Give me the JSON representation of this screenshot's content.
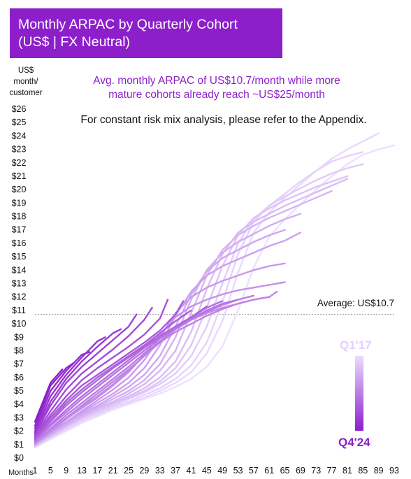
{
  "header": {
    "title_line1": "Monthly ARPAC by Quarterly Cohort",
    "title_line2": "(US$ | FX Neutral)"
  },
  "y_unit": {
    "line1": "US$",
    "line2": "month/",
    "line3": "customer"
  },
  "subtitle": {
    "line1": "Avg. monthly ARPAC of US$10.7/month while more",
    "line2": "mature cohorts already reach ~US$25/month"
  },
  "note": "For constant risk mix analysis, please refer to the Appendix.",
  "average_label": "Average: US$10.7",
  "legend": {
    "oldest": "Q1'17",
    "newest": "Q4'24"
  },
  "colors": {
    "newest": "#8d1fcb",
    "oldest": "#ece0ff",
    "avg_line": "#9a9a9a"
  },
  "chart_data": {
    "type": "line",
    "xlabel": "Months",
    "ylabel": "US$ month/ customer",
    "xlim": [
      1,
      93
    ],
    "ylim": [
      0,
      26
    ],
    "x_ticks": [
      1,
      5,
      9,
      13,
      17,
      21,
      25,
      29,
      33,
      37,
      41,
      45,
      49,
      53,
      57,
      61,
      65,
      69,
      73,
      77,
      81,
      85,
      89,
      93
    ],
    "y_ticks": [
      "$0",
      "$1",
      "$2",
      "$3",
      "$4",
      "$5",
      "$6",
      "$7",
      "$8",
      "$9",
      "$10",
      "$11",
      "$12",
      "$13",
      "$14",
      "$15",
      "$16",
      "$17",
      "$18",
      "$19",
      "$20",
      "$21",
      "$22",
      "$23",
      "$24",
      "$25",
      "$26"
    ],
    "average": 10.7,
    "grid": false,
    "legend_position": "right",
    "series": [
      {
        "x": [
          1,
          5,
          9,
          13,
          17,
          21,
          25,
          29,
          33,
          37,
          41,
          45,
          49,
          53,
          57,
          61,
          65,
          69,
          73,
          77,
          81,
          85,
          89,
          93
        ],
        "y": [
          0.8,
          1.4,
          2.0,
          2.6,
          3.1,
          3.6,
          4.0,
          4.4,
          4.8,
          5.3,
          5.9,
          6.8,
          8.3,
          11.0,
          14.2,
          16.5,
          17.8,
          18.9,
          20.0,
          21.0,
          21.9,
          22.6,
          23.0,
          23.3
        ]
      },
      {
        "x": [
          1,
          5,
          9,
          13,
          17,
          21,
          25,
          29,
          33,
          37,
          41,
          45,
          49,
          53,
          57,
          61,
          65,
          69,
          73,
          77,
          81,
          85,
          89
        ],
        "y": [
          0.8,
          1.5,
          2.1,
          2.7,
          3.2,
          3.7,
          4.1,
          4.5,
          5.0,
          5.6,
          6.4,
          7.8,
          10.2,
          13.8,
          16.8,
          18.3,
          19.4,
          20.4,
          21.4,
          22.3,
          23.0,
          23.6,
          24.2
        ]
      },
      {
        "x": [
          1,
          5,
          9,
          13,
          17,
          21,
          25,
          29,
          33,
          37,
          41,
          45,
          49,
          53,
          57,
          61,
          65,
          69,
          73,
          77,
          81,
          85
        ],
        "y": [
          0.8,
          1.5,
          2.2,
          2.8,
          3.3,
          3.8,
          4.2,
          4.7,
          5.2,
          5.9,
          6.9,
          8.6,
          11.6,
          15.2,
          17.6,
          18.8,
          19.7,
          20.6,
          21.4,
          22.1,
          22.5,
          22.8
        ]
      },
      {
        "x": [
          1,
          5,
          9,
          13,
          17,
          21,
          25,
          29,
          33,
          37,
          41,
          45,
          49,
          53,
          57,
          61,
          65,
          69,
          73,
          77,
          81,
          85
        ],
        "y": [
          0.9,
          1.6,
          2.3,
          2.9,
          3.4,
          3.9,
          4.4,
          4.9,
          5.5,
          6.3,
          7.6,
          9.8,
          13.0,
          16.0,
          17.8,
          18.8,
          19.5,
          20.1,
          20.7,
          21.2,
          21.6,
          21.9
        ]
      },
      {
        "x": [
          1,
          5,
          9,
          13,
          17,
          21,
          25,
          29,
          33,
          37,
          41,
          45,
          49,
          53,
          57,
          61,
          65,
          69,
          73,
          77,
          81
        ],
        "y": [
          0.9,
          1.6,
          2.3,
          3.0,
          3.5,
          4.0,
          4.5,
          5.0,
          5.7,
          6.7,
          8.4,
          11.2,
          14.3,
          16.6,
          17.9,
          18.6,
          19.2,
          19.7,
          20.2,
          20.6,
          21.0
        ]
      },
      {
        "x": [
          1,
          5,
          9,
          13,
          17,
          21,
          25,
          29,
          33,
          37,
          41,
          45,
          49,
          53,
          57,
          61,
          65,
          69,
          73,
          77,
          81
        ],
        "y": [
          0.9,
          1.7,
          2.4,
          3.0,
          3.6,
          4.1,
          4.6,
          5.2,
          6.0,
          7.2,
          9.4,
          12.6,
          15.2,
          16.8,
          17.6,
          18.2,
          18.8,
          19.3,
          19.8,
          20.3,
          20.8
        ]
      },
      {
        "x": [
          1,
          5,
          9,
          13,
          17,
          21,
          25,
          29,
          33,
          37,
          41,
          45,
          49,
          53,
          57,
          61,
          65,
          69,
          73,
          77
        ],
        "y": [
          1.0,
          1.7,
          2.4,
          3.1,
          3.7,
          4.2,
          4.8,
          5.5,
          6.5,
          8.0,
          10.8,
          13.6,
          15.5,
          16.6,
          17.3,
          17.9,
          18.4,
          18.9,
          19.4,
          19.9
        ]
      },
      {
        "x": [
          1,
          5,
          9,
          13,
          17,
          21,
          25,
          29,
          33,
          37,
          41,
          45,
          49,
          53,
          57,
          61,
          65,
          69
        ],
        "y": [
          1.0,
          1.8,
          2.5,
          3.2,
          3.8,
          4.4,
          5.0,
          5.8,
          7.0,
          9.0,
          11.8,
          14.0,
          15.3,
          16.1,
          16.7,
          17.3,
          17.8,
          18.2
        ]
      },
      {
        "x": [
          1,
          5,
          9,
          13,
          17,
          21,
          25,
          29,
          33,
          37,
          41,
          45,
          49,
          53,
          57,
          61,
          65
        ],
        "y": [
          1.0,
          1.8,
          2.6,
          3.3,
          3.9,
          4.6,
          5.3,
          6.2,
          7.6,
          9.8,
          12.2,
          13.9,
          14.9,
          15.5,
          16.1,
          16.6,
          17.0
        ]
      },
      {
        "x": [
          1,
          5,
          9,
          13,
          17,
          21,
          25,
          29,
          33,
          37,
          41,
          45,
          49,
          53,
          57,
          61,
          65,
          69
        ],
        "y": [
          1.0,
          1.9,
          2.7,
          3.4,
          4.1,
          4.8,
          5.6,
          6.7,
          8.4,
          10.6,
          12.4,
          13.6,
          14.3,
          14.8,
          15.3,
          15.8,
          16.2,
          16.8
        ]
      },
      {
        "x": [
          1,
          5,
          9,
          13,
          17,
          21,
          25,
          29,
          33,
          37,
          41,
          45,
          49,
          53,
          57,
          61,
          65
        ],
        "y": [
          1.1,
          1.9,
          2.7,
          3.5,
          4.3,
          5.1,
          6.0,
          7.3,
          9.0,
          10.8,
          12.0,
          12.7,
          13.2,
          13.6,
          14.0,
          14.3,
          14.5
        ]
      },
      {
        "x": [
          1,
          5,
          9,
          13,
          17,
          21,
          25,
          29,
          33,
          37,
          41,
          45,
          49,
          53,
          57,
          61,
          65
        ],
        "y": [
          1.1,
          2.0,
          2.9,
          3.7,
          4.5,
          5.4,
          6.4,
          7.7,
          9.2,
          10.5,
          11.3,
          11.8,
          12.2,
          12.5,
          12.7,
          12.9,
          13.1
        ]
      },
      {
        "x": [
          1,
          5,
          9,
          13,
          17,
          21,
          25,
          29,
          33,
          37,
          41,
          45,
          49,
          53,
          57,
          61,
          63
        ],
        "y": [
          1.1,
          2.0,
          2.9,
          3.8,
          4.6,
          5.5,
          6.5,
          7.6,
          8.7,
          9.6,
          10.3,
          10.8,
          11.2,
          11.5,
          11.8,
          12.0,
          12.4
        ]
      },
      {
        "x": [
          1,
          5,
          9,
          13,
          17,
          21,
          25,
          29,
          33,
          37,
          41,
          45,
          49,
          53,
          57,
          61
        ],
        "y": [
          1.2,
          2.1,
          3.0,
          3.9,
          4.8,
          5.7,
          6.6,
          7.6,
          8.6,
          9.4,
          10.0,
          10.6,
          11.1,
          11.5,
          11.8,
          12.0
        ]
      },
      {
        "x": [
          1,
          5,
          9,
          13,
          17,
          21,
          25,
          29,
          33,
          37,
          41,
          45,
          49,
          53,
          57
        ],
        "y": [
          1.2,
          2.2,
          3.2,
          4.1,
          5.0,
          5.9,
          6.8,
          7.8,
          8.7,
          9.6,
          10.3,
          10.9,
          11.4,
          11.8,
          12.1
        ]
      },
      {
        "x": [
          1,
          5,
          9,
          13,
          17,
          21,
          25,
          29,
          33,
          37,
          41,
          45,
          49,
          53
        ],
        "y": [
          1.3,
          2.4,
          3.4,
          4.4,
          5.3,
          6.2,
          7.1,
          8.0,
          8.9,
          9.7,
          10.4,
          11.0,
          11.5,
          11.8
        ]
      },
      {
        "x": [
          1,
          5,
          9,
          13,
          17,
          21,
          25,
          29,
          33,
          37,
          41,
          45,
          49
        ],
        "y": [
          1.3,
          2.5,
          3.6,
          4.6,
          5.5,
          6.4,
          7.3,
          8.2,
          9.0,
          9.8,
          10.5,
          11.2,
          11.7
        ]
      },
      {
        "x": [
          1,
          5,
          9,
          13,
          17,
          21,
          25,
          29,
          33,
          37,
          41,
          45
        ],
        "y": [
          1.4,
          2.7,
          3.9,
          4.9,
          5.8,
          6.7,
          7.5,
          8.3,
          9.1,
          9.8,
          10.5,
          11.3
        ]
      },
      {
        "x": [
          1,
          5,
          9,
          13,
          17,
          21,
          25,
          29,
          33,
          37,
          41
        ],
        "y": [
          1.4,
          2.8,
          4.1,
          5.1,
          6.0,
          6.8,
          7.6,
          8.4,
          9.3,
          10.2,
          11.0
        ]
      },
      {
        "x": [
          1,
          5,
          9,
          13,
          17,
          21,
          25,
          29,
          33,
          37,
          39
        ],
        "y": [
          1.5,
          3.0,
          4.3,
          5.4,
          6.2,
          7.0,
          7.8,
          8.6,
          9.5,
          10.7,
          11.7
        ]
      },
      {
        "x": [
          1,
          5,
          9,
          13,
          17,
          21,
          25,
          29,
          33,
          35
        ],
        "y": [
          1.6,
          3.2,
          4.6,
          5.8,
          6.7,
          7.5,
          8.3,
          9.2,
          10.4,
          11.8
        ]
      },
      {
        "x": [
          1,
          5,
          9,
          13,
          17,
          21,
          25,
          29,
          31
        ],
        "y": [
          1.7,
          3.5,
          5.1,
          6.3,
          7.2,
          8.1,
          9.1,
          10.3,
          11.2
        ]
      },
      {
        "x": [
          1,
          5,
          9,
          13,
          17,
          21,
          25,
          27
        ],
        "y": [
          1.8,
          3.9,
          5.6,
          6.8,
          7.8,
          8.8,
          9.8,
          10.7
        ]
      },
      {
        "x": [
          1,
          5,
          9,
          13,
          17,
          21,
          23
        ],
        "y": [
          1.9,
          4.2,
          5.9,
          7.2,
          8.3,
          9.3,
          9.6
        ]
      },
      {
        "x": [
          1,
          5,
          9,
          13,
          17,
          19
        ],
        "y": [
          2.0,
          4.6,
          6.2,
          7.5,
          8.7,
          9.0
        ]
      },
      {
        "x": [
          1,
          5,
          9,
          13,
          15
        ],
        "y": [
          2.2,
          5.0,
          6.5,
          7.7,
          7.9
        ]
      },
      {
        "x": [
          1,
          5,
          9,
          11
        ],
        "y": [
          2.4,
          5.4,
          6.7,
          7.1
        ]
      },
      {
        "x": [
          1,
          5,
          8
        ],
        "y": [
          2.7,
          5.6,
          6.6
        ]
      }
    ]
  }
}
